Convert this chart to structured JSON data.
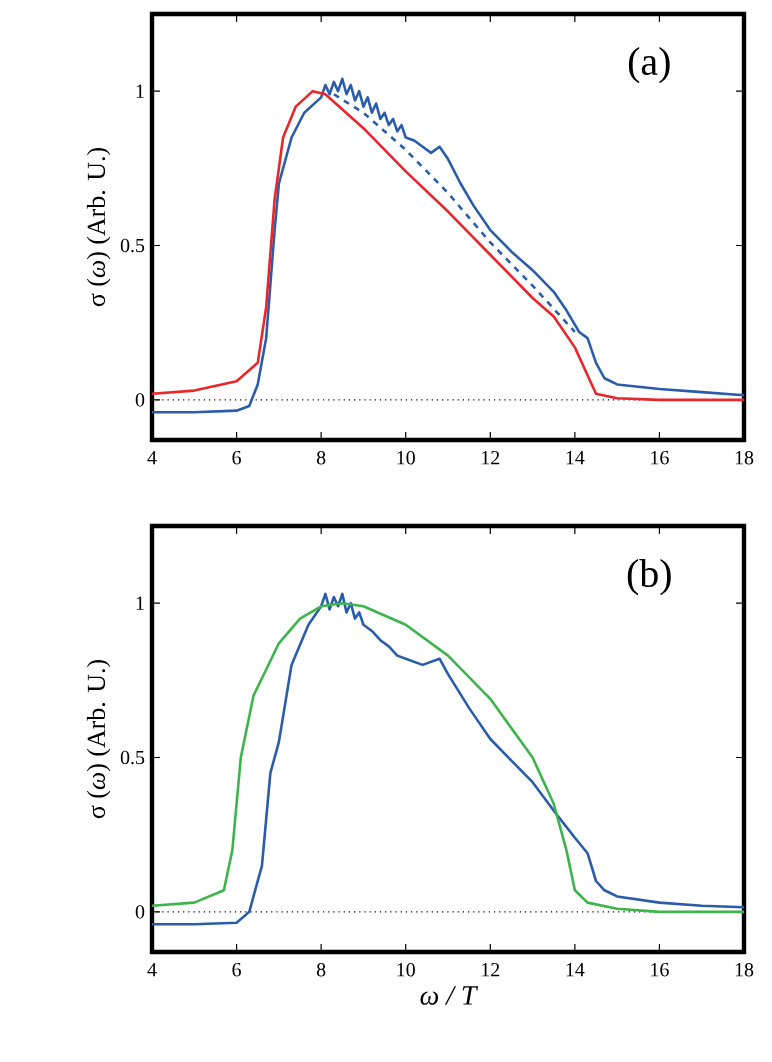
{
  "chart_data": [
    {
      "type": "line",
      "ylabel": "σ (*ω*) (Arb. U.)",
      "annotations": [
        "(a)"
      ],
      "xlim": [
        4,
        18
      ],
      "xticks": [
        4,
        6,
        8,
        10,
        12,
        14,
        16,
        18
      ],
      "ylim": [
        -0.13,
        1.25
      ],
      "yticks": [
        0,
        0.5,
        1
      ],
      "ref_lines": [
        {
          "axis": "y",
          "value": 0,
          "color": "#000000",
          "line_style": "dotted"
        }
      ],
      "series": [
        {
          "color": "#2a5caa",
          "x": [
            4,
            5,
            6,
            6.3,
            6.5,
            6.7,
            6.9,
            7.0,
            7.3,
            7.6,
            8.0,
            8.1,
            8.2,
            8.3,
            8.4,
            8.5,
            8.6,
            8.7,
            8.8,
            8.9,
            9.0,
            9.1,
            9.2,
            9.3,
            9.4,
            9.5,
            9.6,
            9.7,
            9.8,
            9.9,
            10.0,
            10.2,
            10.4,
            10.6,
            10.8,
            11.0,
            11.3,
            11.6,
            12.0,
            12.5,
            13.0,
            13.5,
            13.8,
            14.1,
            14.3,
            14.5,
            14.7,
            15,
            16,
            17,
            18
          ],
          "values": [
            -0.04,
            -0.04,
            -0.035,
            -0.02,
            0.05,
            0.2,
            0.55,
            0.7,
            0.85,
            0.93,
            0.98,
            1.02,
            0.99,
            1.03,
            1.0,
            1.04,
            0.99,
            1.02,
            0.97,
            1.0,
            0.95,
            0.98,
            0.93,
            0.96,
            0.91,
            0.93,
            0.89,
            0.91,
            0.87,
            0.89,
            0.85,
            0.84,
            0.82,
            0.8,
            0.82,
            0.78,
            0.7,
            0.63,
            0.55,
            0.48,
            0.42,
            0.35,
            0.29,
            0.22,
            0.2,
            0.12,
            0.07,
            0.05,
            0.035,
            0.025,
            0.015
          ]
        },
        {
          "color": "#2a5caa",
          "line_style": "dashed",
          "x": [
            8.3,
            9,
            10,
            11,
            12,
            13,
            14
          ],
          "values": [
            0.99,
            0.93,
            0.81,
            0.67,
            0.51,
            0.37,
            0.22
          ]
        },
        {
          "color": "#e8262b",
          "x": [
            4,
            5,
            6,
            6.5,
            6.7,
            6.9,
            7.1,
            7.4,
            7.8,
            8.1,
            9,
            10,
            11,
            12,
            13,
            13.5,
            14,
            14.3,
            14.5,
            15,
            16,
            18
          ],
          "values": [
            0.02,
            0.03,
            0.06,
            0.12,
            0.3,
            0.65,
            0.85,
            0.95,
            1.0,
            0.99,
            0.88,
            0.74,
            0.61,
            0.47,
            0.33,
            0.27,
            0.17,
            0.08,
            0.02,
            0.005,
            0.0,
            0.0
          ]
        }
      ]
    },
    {
      "type": "line",
      "xlabel": "ω / T",
      "ylabel": "σ (*ω*) (Arb. U.)",
      "annotations": [
        "(b)"
      ],
      "xlim": [
        4,
        18
      ],
      "xticks": [
        4,
        6,
        8,
        10,
        12,
        14,
        16,
        18
      ],
      "ylim": [
        -0.13,
        1.25
      ],
      "yticks": [
        0,
        0.5,
        1
      ],
      "ref_lines": [
        {
          "axis": "y",
          "value": 0,
          "color": "#000000",
          "line_style": "dotted"
        }
      ],
      "series": [
        {
          "color": "#2a5caa",
          "x": [
            4,
            5,
            6,
            6.3,
            6.6,
            6.8,
            7.0,
            7.3,
            7.7,
            8.0,
            8.1,
            8.2,
            8.3,
            8.4,
            8.5,
            8.6,
            8.7,
            8.8,
            8.9,
            9.0,
            9.2,
            9.4,
            9.6,
            9.8,
            10.0,
            10.4,
            10.8,
            11.0,
            11.5,
            12.0,
            12.5,
            13.0,
            13.6,
            14.0,
            14.3,
            14.5,
            14.7,
            15,
            16,
            17,
            18
          ],
          "values": [
            -0.04,
            -0.04,
            -0.035,
            0.0,
            0.15,
            0.45,
            0.55,
            0.8,
            0.93,
            0.99,
            1.03,
            0.98,
            1.02,
            0.99,
            1.03,
            0.97,
            1.0,
            0.95,
            0.97,
            0.93,
            0.91,
            0.88,
            0.86,
            0.83,
            0.82,
            0.8,
            0.82,
            0.77,
            0.66,
            0.56,
            0.49,
            0.42,
            0.31,
            0.24,
            0.19,
            0.1,
            0.07,
            0.05,
            0.03,
            0.02,
            0.015
          ]
        },
        {
          "color": "#3cb44b",
          "x": [
            4,
            5,
            5.7,
            5.9,
            6.1,
            6.4,
            7,
            7.5,
            8,
            8.5,
            9,
            10,
            11,
            12,
            13,
            13.5,
            13.8,
            14,
            14.3,
            15,
            16,
            18
          ],
          "values": [
            0.02,
            0.03,
            0.07,
            0.2,
            0.5,
            0.7,
            0.87,
            0.95,
            0.99,
            1.0,
            0.99,
            0.93,
            0.83,
            0.69,
            0.5,
            0.35,
            0.2,
            0.07,
            0.03,
            0.01,
            0.0,
            0.0
          ]
        }
      ]
    }
  ]
}
